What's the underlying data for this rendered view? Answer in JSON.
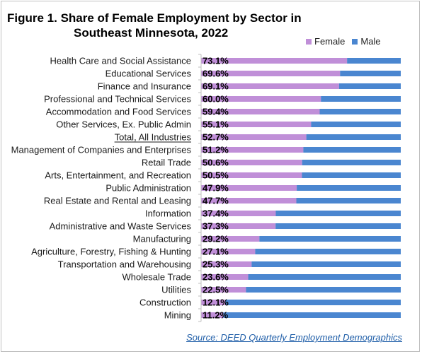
{
  "chart_data": {
    "type": "bar",
    "orientation": "horizontal",
    "stacked": true,
    "title_line1": "Figure 1. Share of Female Employment by Sector in",
    "title_line2": "Southeast Minnesota, 2022",
    "categories": [
      "Health Care and Social Assistance",
      "Educational Services",
      "Finance and Insurance",
      "Professional and Technical Services",
      "Accommodation and Food Services",
      "Other Services, Ex. Public Admin",
      "Total, All Industries",
      "Management of Companies and Enterprises",
      "Retail Trade",
      "Arts, Entertainment, and Recreation",
      "Public Administration",
      "Real Estate and Rental and Leasing",
      "Information",
      "Administrative and Waste Services",
      "Manufacturing",
      "Agriculture, Forestry, Fishing & Hunting",
      "Transportation and Warehousing",
      "Wholesale Trade",
      "Utilities",
      "Construction",
      "Mining"
    ],
    "highlighted_category": "Total, All Industries",
    "series": [
      {
        "name": "Female",
        "color": "#c08fd8",
        "values": [
          73.1,
          69.6,
          69.1,
          60.0,
          59.4,
          55.1,
          52.7,
          51.2,
          50.6,
          50.5,
          47.9,
          47.7,
          37.4,
          37.3,
          29.2,
          27.1,
          25.3,
          23.6,
          22.5,
          12.1,
          11.2
        ],
        "labels": [
          "73.1%",
          "69.6%",
          "69.1%",
          "60.0%",
          "59.4%",
          "55.1%",
          "52.7%",
          "51.2%",
          "50.6%",
          "50.5%",
          "47.9%",
          "47.7%",
          "37.4%",
          "37.3%",
          "29.2%",
          "27.1%",
          "25.3%",
          "23.6%",
          "22.5%",
          "12.1%",
          "11.2%"
        ]
      },
      {
        "name": "Male",
        "color": "#4a86d0",
        "values": [
          26.9,
          30.4,
          30.9,
          40.0,
          40.6,
          44.9,
          47.3,
          48.8,
          49.4,
          49.5,
          52.1,
          52.3,
          62.6,
          62.7,
          70.8,
          72.9,
          74.7,
          76.4,
          77.5,
          87.9,
          88.8
        ]
      }
    ],
    "xlim": [
      0,
      100
    ],
    "legend_position": "top-right",
    "source": "Source: DEED Quarterly Employment Demographics"
  }
}
